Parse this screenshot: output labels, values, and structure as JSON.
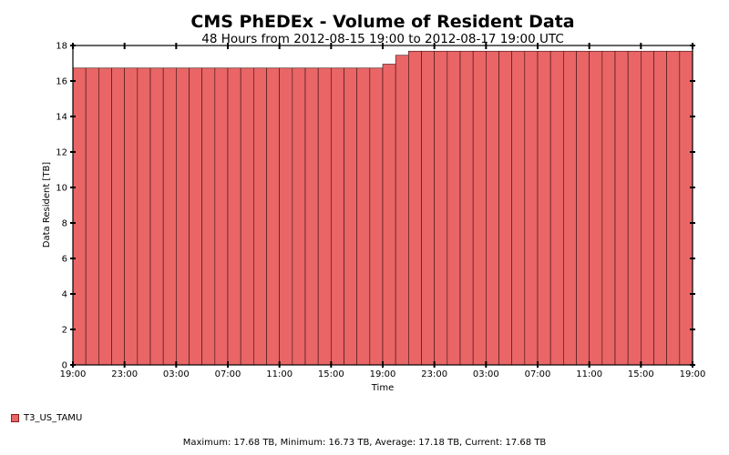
{
  "chart_data": {
    "type": "bar",
    "title": "CMS PhEDEx - Volume of Resident Data",
    "subtitle": "48 Hours from 2012-08-15 19:00 to 2012-08-17 19:00 UTC",
    "xlabel": "Time",
    "ylabel": "Data Resident [TB]",
    "ylim": [
      0,
      18
    ],
    "yticks": [
      "0",
      "2",
      "4",
      "6",
      "8",
      "10",
      "12",
      "14",
      "16",
      "18"
    ],
    "xtick_labels": [
      "19:00",
      "23:00",
      "03:00",
      "07:00",
      "11:00",
      "15:00",
      "19:00",
      "23:00",
      "03:00",
      "07:00",
      "11:00",
      "15:00",
      "19:00"
    ],
    "grid": false,
    "legend_position": "bottom-left",
    "series": [
      {
        "name": "T3_US_TAMU",
        "color": "#e96566",
        "values": [
          16.73,
          16.73,
          16.73,
          16.73,
          16.73,
          16.73,
          16.73,
          16.73,
          16.73,
          16.73,
          16.73,
          16.73,
          16.73,
          16.73,
          16.73,
          16.73,
          16.73,
          16.73,
          16.73,
          16.73,
          16.73,
          16.73,
          16.73,
          16.73,
          16.95,
          17.45,
          17.68,
          17.68,
          17.68,
          17.68,
          17.68,
          17.68,
          17.68,
          17.68,
          17.68,
          17.68,
          17.68,
          17.68,
          17.68,
          17.68,
          17.68,
          17.68,
          17.68,
          17.68,
          17.68,
          17.68,
          17.68,
          17.68
        ]
      }
    ],
    "footer": "Maximum: 17.68 TB, Minimum: 16.73 TB, Average: 17.18 TB, Current: 17.68 TB"
  }
}
